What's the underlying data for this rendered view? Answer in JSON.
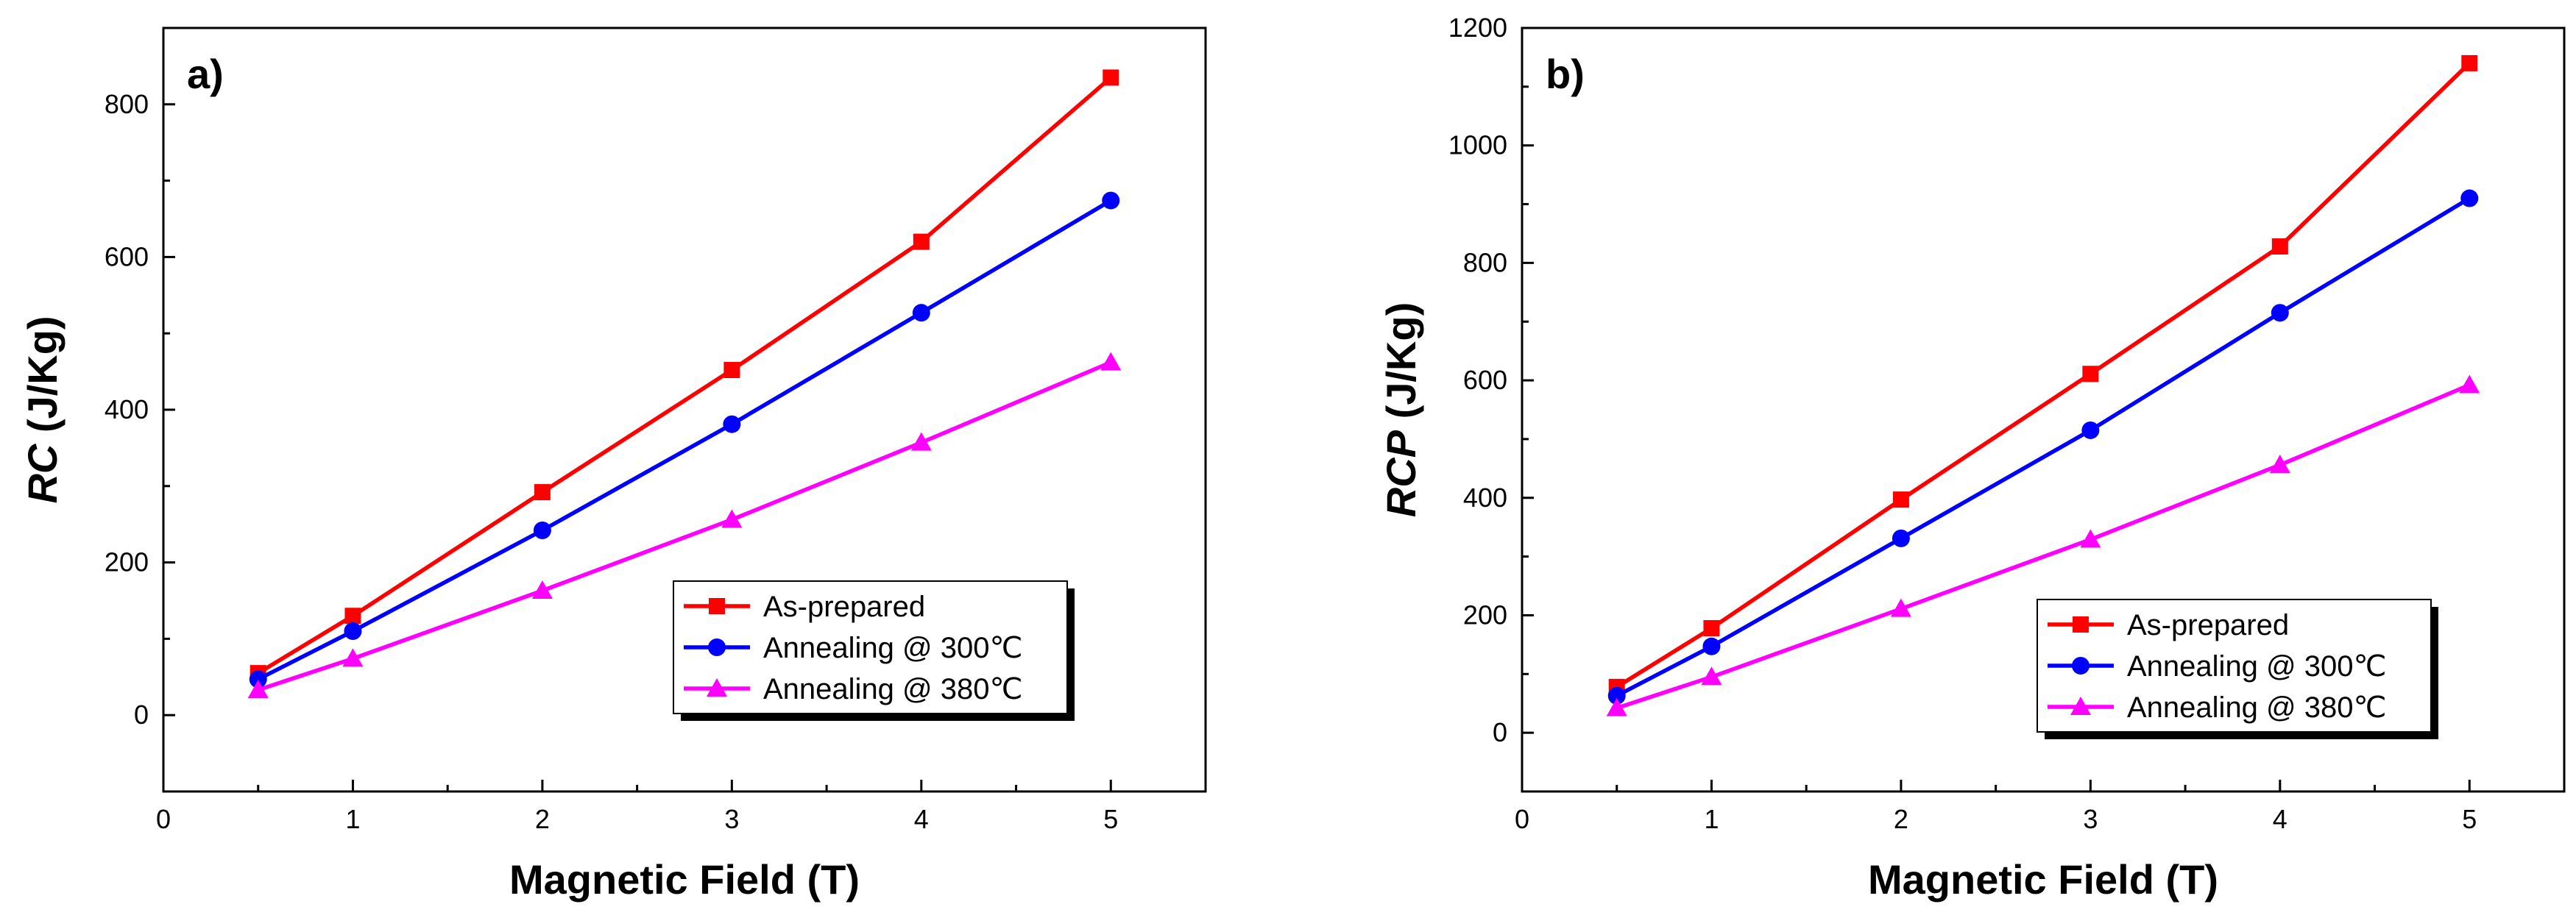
{
  "chart_data": [
    {
      "type": "line",
      "panel_label": "a)",
      "xlabel": "Magnetic Field (T)",
      "ylabel_italic": "RC",
      "ylabel_rest": " (J/Kg)",
      "xlim": [
        0,
        5.5
      ],
      "ylim": [
        -100,
        900
      ],
      "xticks": [
        0,
        1,
        2,
        3,
        4,
        5
      ],
      "yticks": [
        0,
        200,
        400,
        600,
        800
      ],
      "grid": false,
      "legend_position": "lower-right",
      "x": [
        0.5,
        1,
        2,
        3,
        4,
        5
      ],
      "series": [
        {
          "name": "As-prepared",
          "color": "#ff0000",
          "marker": "square",
          "values": [
            55,
            130,
            292,
            452,
            620,
            835
          ]
        },
        {
          "name": "Annealing @ 300℃",
          "color": "#0000ff",
          "marker": "circle",
          "values": [
            47,
            110,
            242,
            381,
            527,
            674
          ]
        },
        {
          "name": "Annealing @ 380℃",
          "color": "#ff00ff",
          "marker": "triangle",
          "values": [
            33,
            74,
            163,
            256,
            357,
            462
          ]
        }
      ]
    },
    {
      "type": "line",
      "panel_label": "b)",
      "xlabel": "Magnetic Field (T)",
      "ylabel_italic": "RCP",
      "ylabel_rest": " (J/Kg)",
      "xlim": [
        0,
        5.5
      ],
      "ylim": [
        -100,
        1200
      ],
      "xticks": [
        0,
        1,
        2,
        3,
        4,
        5
      ],
      "yticks": [
        0,
        200,
        400,
        600,
        800,
        1000,
        1200
      ],
      "grid": false,
      "legend_position": "lower-right",
      "x": [
        0.5,
        1,
        2,
        3,
        4,
        5
      ],
      "series": [
        {
          "name": "As-prepared",
          "color": "#ff0000",
          "marker": "square",
          "values": [
            78,
            178,
            397,
            611,
            828,
            1140
          ]
        },
        {
          "name": "Annealing @ 300℃",
          "color": "#0000ff",
          "marker": "circle",
          "values": [
            63,
            147,
            331,
            515,
            715,
            910
          ]
        },
        {
          "name": "Annealing @ 380℃",
          "color": "#ff00ff",
          "marker": "triangle",
          "values": [
            42,
            95,
            211,
            329,
            456,
            592
          ]
        }
      ]
    }
  ]
}
